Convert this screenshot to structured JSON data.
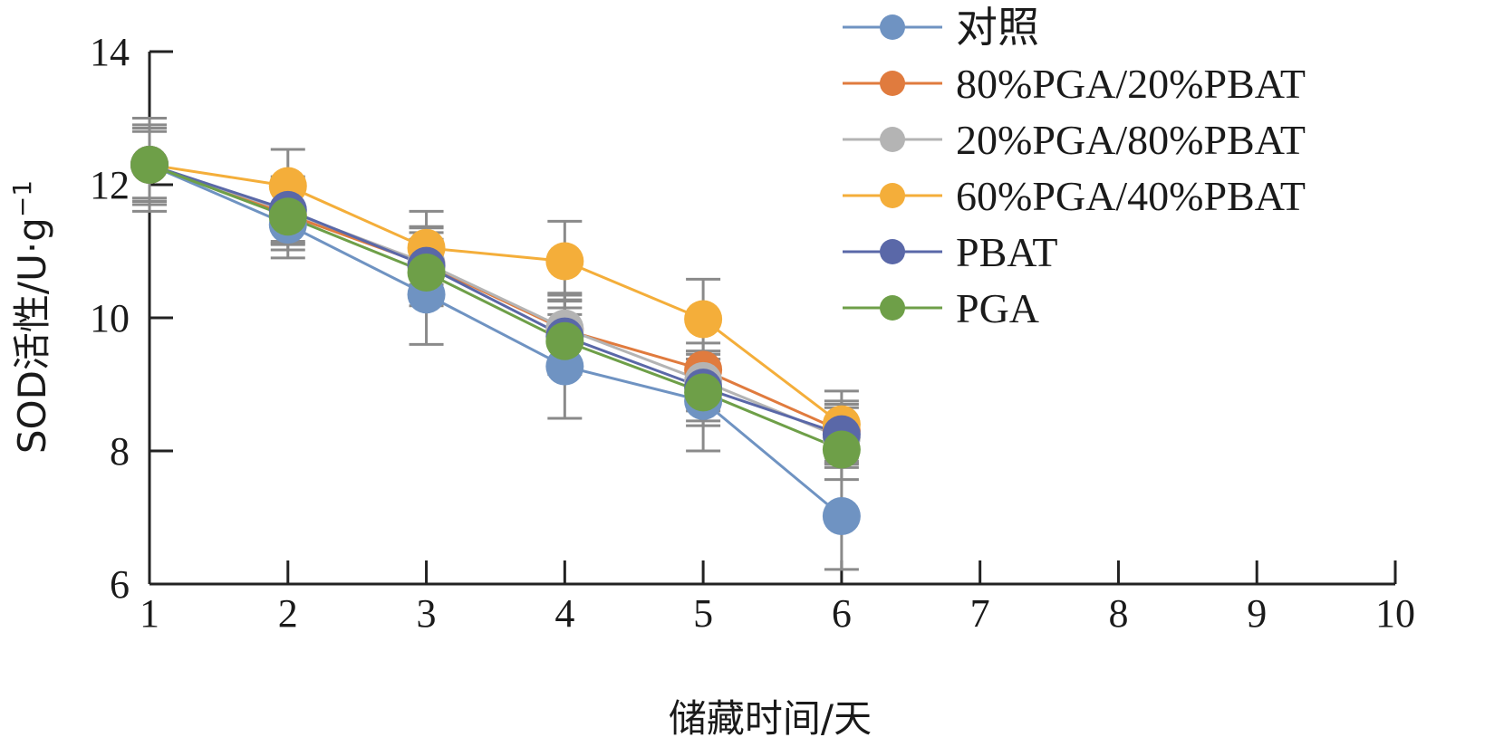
{
  "chart_data": {
    "type": "line",
    "xlabel": "储藏时间/天",
    "ylabel": "SOD活性/U·g",
    "ylabel_sup": "−1",
    "xlim": [
      1,
      10
    ],
    "ylim": [
      6,
      14
    ],
    "x_ticks": [
      1,
      2,
      3,
      4,
      5,
      6,
      7,
      8,
      9,
      10
    ],
    "y_ticks": [
      6,
      8,
      10,
      12,
      14
    ],
    "grid": false,
    "legend_position": "top-right",
    "x": [
      1,
      2,
      3,
      4,
      5,
      6
    ],
    "series": [
      {
        "name": "对照",
        "color": "#6f93c2",
        "values": [
          12.3,
          11.4,
          10.35,
          9.27,
          8.75,
          7.02
        ],
        "errors": [
          0.7,
          0.5,
          0.75,
          0.78,
          0.75,
          0.8
        ]
      },
      {
        "name": "80%PGA/20%PBAT",
        "color": "#e07b3e",
        "values": [
          12.3,
          11.55,
          10.8,
          9.82,
          9.22,
          8.3
        ],
        "errors": [
          0.6,
          0.45,
          0.55,
          0.55,
          0.4,
          0.45
        ]
      },
      {
        "name": "20%PGA/80%PBAT",
        "color": "#b4b4b4",
        "values": [
          12.3,
          11.6,
          10.82,
          9.84,
          9.05,
          8.2
        ],
        "errors": [
          0.55,
          0.45,
          0.55,
          0.5,
          0.45,
          0.45
        ]
      },
      {
        "name": "60%PGA/40%PBAT",
        "color": "#f4ae3a",
        "values": [
          12.3,
          11.98,
          11.05,
          10.85,
          9.98,
          8.4
        ],
        "errors": [
          0.55,
          0.55,
          0.55,
          0.6,
          0.6,
          0.5
        ]
      },
      {
        "name": "PBAT",
        "color": "#5a68a8",
        "values": [
          12.3,
          11.62,
          10.78,
          9.72,
          8.95,
          8.25
        ],
        "errors": [
          0.55,
          0.5,
          0.5,
          0.55,
          0.5,
          0.45
        ]
      },
      {
        "name": "PGA",
        "color": "#6e9f48",
        "values": [
          12.3,
          11.52,
          10.68,
          9.65,
          8.88,
          8.02
        ],
        "errors": [
          0.5,
          0.5,
          0.5,
          0.5,
          0.5,
          0.45
        ]
      }
    ]
  }
}
